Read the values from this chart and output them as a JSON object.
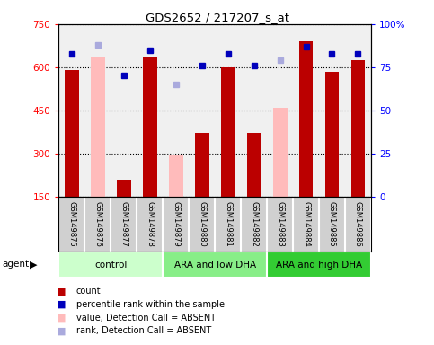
{
  "title": "GDS2652 / 217207_s_at",
  "samples": [
    "GSM149875",
    "GSM149876",
    "GSM149877",
    "GSM149878",
    "GSM149879",
    "GSM149880",
    "GSM149881",
    "GSM149882",
    "GSM149883",
    "GSM149884",
    "GSM149885",
    "GSM149886"
  ],
  "count_present": [
    590,
    null,
    210,
    638,
    null,
    370,
    600,
    370,
    null,
    690,
    585,
    625
  ],
  "count_absent": [
    null,
    638,
    null,
    null,
    295,
    null,
    null,
    null,
    460,
    null,
    null,
    null
  ],
  "pct_present": [
    83,
    null,
    70,
    85,
    null,
    76,
    83,
    76,
    null,
    87,
    83,
    83
  ],
  "pct_absent": [
    null,
    88,
    null,
    null,
    65,
    null,
    null,
    null,
    79,
    null,
    null,
    null
  ],
  "ylim_left": [
    150,
    750
  ],
  "ylim_right": [
    0,
    100
  ],
  "yticks_left": [
    150,
    300,
    450,
    600,
    750
  ],
  "yticks_right": [
    0,
    25,
    50,
    75,
    100
  ],
  "groups": [
    {
      "label": "control",
      "indices": [
        0,
        1,
        2,
        3
      ],
      "color": "#ccffcc"
    },
    {
      "label": "ARA and low DHA",
      "indices": [
        4,
        5,
        6,
        7
      ],
      "color": "#88ee88"
    },
    {
      "label": "ARA and high DHA",
      "indices": [
        8,
        9,
        10,
        11
      ],
      "color": "#33cc33"
    }
  ],
  "count_color": "#bb0000",
  "absent_count_color": "#ffbbbb",
  "pct_color": "#0000bb",
  "absent_pct_color": "#aaaadd",
  "bg_color": "#f0f0f0",
  "xtick_bg_color": "#d0d0d0",
  "legend_items": [
    {
      "label": "count",
      "color": "#bb0000"
    },
    {
      "label": "percentile rank within the sample",
      "color": "#0000bb"
    },
    {
      "label": "value, Detection Call = ABSENT",
      "color": "#ffbbbb"
    },
    {
      "label": "rank, Detection Call = ABSENT",
      "color": "#aaaadd"
    }
  ]
}
